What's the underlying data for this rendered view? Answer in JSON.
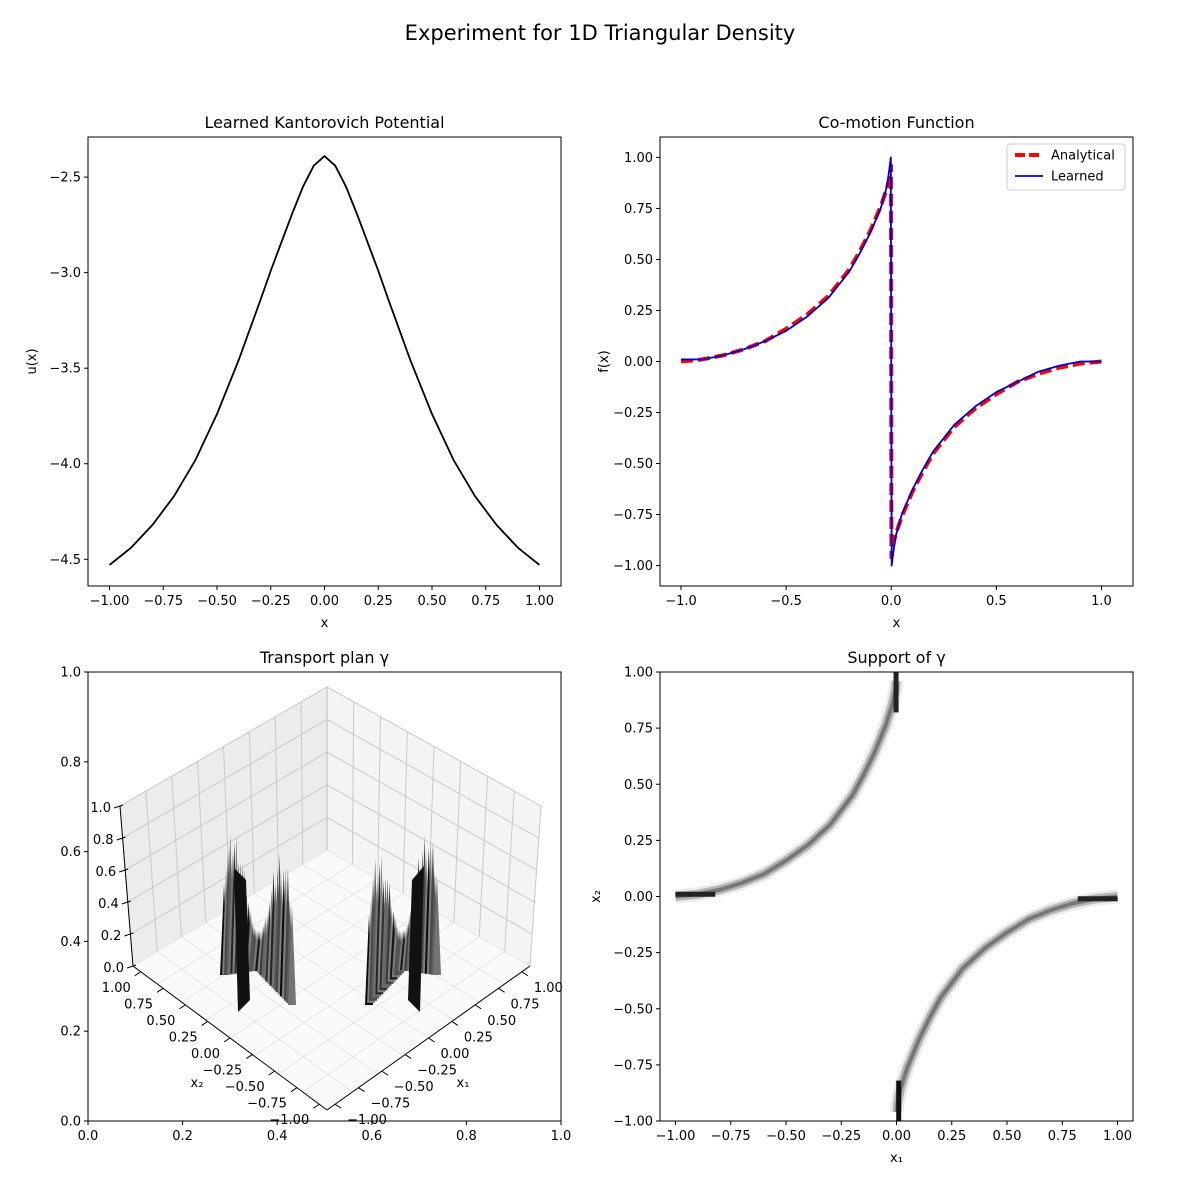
{
  "figure": {
    "title": "Experiment for 1D Triangular Density"
  },
  "chart_data": [
    {
      "id": "potential",
      "type": "line",
      "title": "Learned Kantorovich Potential",
      "xlabel": "x",
      "ylabel": "u(x)",
      "xlim": [
        -1.1,
        1.1
      ],
      "ylim": [
        -4.64,
        -2.29
      ],
      "xticks": [
        -1.0,
        -0.75,
        -0.5,
        -0.25,
        0.0,
        0.25,
        0.5,
        0.75,
        1.0
      ],
      "xtick_labels": [
        "−1.00",
        "−0.75",
        "−0.50",
        "−0.25",
        "0.00",
        "0.25",
        "0.50",
        "0.75",
        "1.00"
      ],
      "yticks": [
        -4.5,
        -4.0,
        -3.5,
        -3.0,
        -2.5
      ],
      "ytick_labels": [
        "−4.5",
        "−4.0",
        "−3.5",
        "−3.0",
        "−2.5"
      ],
      "series": [
        {
          "color": "#000000",
          "x": [
            -1.0,
            -0.9,
            -0.8,
            -0.7,
            -0.6,
            -0.5,
            -0.4,
            -0.3,
            -0.25,
            -0.2,
            -0.15,
            -0.1,
            -0.05,
            -0.02,
            0.0,
            0.02,
            0.05,
            0.1,
            0.15,
            0.2,
            0.25,
            0.3,
            0.4,
            0.5,
            0.6,
            0.7,
            0.8,
            0.9,
            1.0
          ],
          "y": [
            -4.53,
            -4.44,
            -4.32,
            -4.17,
            -3.98,
            -3.74,
            -3.46,
            -3.15,
            -2.99,
            -2.84,
            -2.69,
            -2.55,
            -2.44,
            -2.41,
            -2.39,
            -2.41,
            -2.44,
            -2.55,
            -2.69,
            -2.84,
            -2.99,
            -3.15,
            -3.46,
            -3.74,
            -3.98,
            -4.17,
            -4.32,
            -4.44,
            -4.53
          ]
        }
      ]
    },
    {
      "id": "comotion",
      "type": "line",
      "title": "Co-motion Function",
      "xlabel": "x",
      "ylabel": "f(x)",
      "xlim": [
        -1.1,
        1.15
      ],
      "ylim": [
        -1.1,
        1.1
      ],
      "xticks": [
        -1.0,
        -0.5,
        0.0,
        0.5,
        1.0
      ],
      "xtick_labels": [
        "−1.0",
        "−0.5",
        "0.0",
        "0.5",
        "1.0"
      ],
      "yticks": [
        -1.0,
        -0.75,
        -0.5,
        -0.25,
        0.0,
        0.25,
        0.5,
        0.75,
        1.0
      ],
      "ytick_labels": [
        "−1.00",
        "−0.75",
        "−0.50",
        "−0.25",
        "0.00",
        "0.25",
        "0.50",
        "0.75",
        "1.00"
      ],
      "legend": "upper right",
      "series": [
        {
          "name": "Analytical",
          "color": "#ff0000",
          "dash": true,
          "x": [
            -1.0,
            -0.9,
            -0.8,
            -0.7,
            -0.6,
            -0.5,
            -0.4,
            -0.3,
            -0.2,
            -0.15,
            -0.1,
            -0.05,
            -0.02,
            -0.005,
            -0.001,
            0.001,
            0.005,
            0.02,
            0.05,
            0.1,
            0.15,
            0.2,
            0.3,
            0.4,
            0.5,
            0.6,
            0.7,
            0.8,
            0.9,
            1.0
          ],
          "y": [
            0.0,
            0.01,
            0.03,
            0.06,
            0.1,
            0.16,
            0.23,
            0.32,
            0.45,
            0.54,
            0.64,
            0.76,
            0.85,
            0.92,
            0.96,
            -0.96,
            -0.92,
            -0.85,
            -0.76,
            -0.64,
            -0.54,
            -0.45,
            -0.32,
            -0.23,
            -0.16,
            -0.1,
            -0.06,
            -0.03,
            -0.01,
            0.0
          ]
        },
        {
          "name": "Learned",
          "color": "#0000cc",
          "dash": false,
          "x": [
            -1.0,
            -0.9,
            -0.8,
            -0.7,
            -0.6,
            -0.5,
            -0.4,
            -0.3,
            -0.2,
            -0.15,
            -0.1,
            -0.05,
            -0.02,
            -0.008,
            -0.002,
            0.002,
            0.008,
            0.02,
            0.05,
            0.1,
            0.15,
            0.2,
            0.3,
            0.4,
            0.5,
            0.6,
            0.7,
            0.8,
            0.9,
            1.0
          ],
          "y": [
            0.01,
            0.01,
            0.03,
            0.06,
            0.1,
            0.15,
            0.22,
            0.31,
            0.44,
            0.53,
            0.63,
            0.75,
            0.86,
            0.95,
            1.0,
            -1.0,
            -0.95,
            -0.86,
            -0.75,
            -0.63,
            -0.53,
            -0.44,
            -0.31,
            -0.22,
            -0.15,
            -0.1,
            -0.05,
            -0.02,
            0.0,
            0.0
          ]
        }
      ]
    },
    {
      "id": "transport",
      "type": "surface3d",
      "title": "Transport plan γ",
      "outer_ticks_x": [
        "0.0",
        "0.2",
        "0.4",
        "0.6",
        "0.8",
        "1.0"
      ],
      "outer_ticks_y": [
        "0.0",
        "0.2",
        "0.4",
        "0.6",
        "0.8",
        "1.0"
      ],
      "z_ticks": [
        "0.0",
        "0.2",
        "0.4",
        "0.6",
        "0.8",
        "1.0"
      ],
      "x1_label": "x₁",
      "x2_label": "x₂",
      "grid_ticks": [
        "−1.00",
        "−0.75",
        "−0.50",
        "−0.25",
        "0.00",
        "0.25",
        "0.50",
        "0.75",
        "1.00"
      ]
    },
    {
      "id": "support",
      "type": "heatmap",
      "title": "Support of γ",
      "xlabel": "x₁",
      "ylabel": "x₂",
      "xlim": [
        -1.07,
        1.07
      ],
      "ylim": [
        -1.0,
        1.0
      ],
      "ticks": [
        -1.0,
        -0.75,
        -0.5,
        -0.25,
        0.0,
        0.25,
        0.5,
        0.75,
        1.0
      ],
      "tick_labels": [
        "−1.00",
        "−0.75",
        "−0.50",
        "−0.25",
        "0.00",
        "0.25",
        "0.50",
        "0.75",
        "1.00"
      ],
      "support_curve": "x2 = f(x1)",
      "colormap": "gray_r"
    }
  ]
}
